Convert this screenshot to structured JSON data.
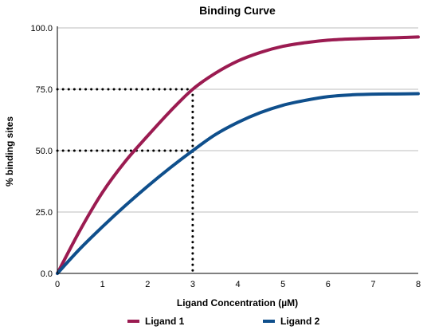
{
  "chart_data": {
    "type": "line",
    "title": "Binding Curve",
    "xlabel": "Ligand Concentration (µM)",
    "ylabel": "% binding sites",
    "xlim": [
      0,
      8
    ],
    "ylim": [
      0,
      100
    ],
    "x_ticks": [
      "0",
      "1",
      "2",
      "3",
      "4",
      "5",
      "6",
      "7",
      "8"
    ],
    "y_ticks": [
      "0.0",
      "25.0",
      "50.0",
      "75.0",
      "100.0"
    ],
    "grid": "horizontal",
    "legend_position": "bottom",
    "series": [
      {
        "name": "Ligand 1",
        "color": "#9b1b51",
        "x": [
          0,
          0.5,
          1,
          1.5,
          2,
          2.5,
          3,
          3.5,
          4,
          4.5,
          5,
          5.5,
          6,
          6.5,
          7,
          7.5,
          8
        ],
        "y": [
          0,
          17.5,
          33,
          45.5,
          56,
          66,
          75,
          81.5,
          86.5,
          90,
          92.5,
          94,
          95,
          95.5,
          95.8,
          96,
          96.3
        ]
      },
      {
        "name": "Ligand 2",
        "color": "#0f4f8c",
        "x": [
          0,
          0.5,
          1,
          1.5,
          2,
          2.5,
          3,
          3.5,
          4,
          4.5,
          5,
          5.5,
          6,
          6.5,
          7,
          7.5,
          8
        ],
        "y": [
          0,
          10,
          19,
          27.5,
          35.5,
          43,
          50,
          56.5,
          61.5,
          65.5,
          68.5,
          70.5,
          72,
          72.7,
          73,
          73.1,
          73.2
        ]
      }
    ],
    "reference_lines": [
      {
        "style": "dotted",
        "from": [
          0,
          75
        ],
        "to": [
          3,
          75
        ]
      },
      {
        "style": "dotted",
        "from": [
          0,
          50
        ],
        "to": [
          3,
          50
        ]
      },
      {
        "style": "dotted",
        "from": [
          3,
          75
        ],
        "to": [
          3,
          0
        ]
      }
    ]
  }
}
